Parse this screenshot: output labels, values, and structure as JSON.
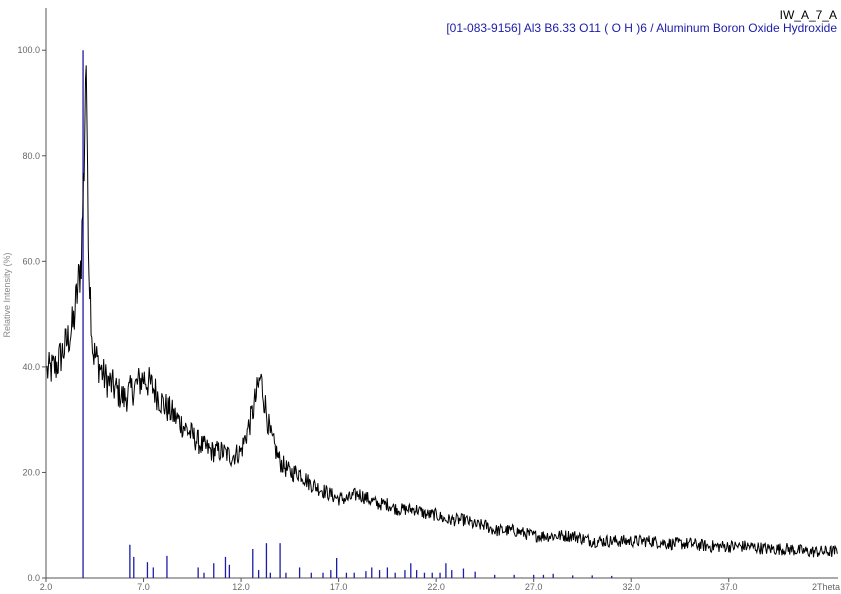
{
  "legend": {
    "sample": "IW_A_7_A",
    "reference": "[01-083-9156] Al3 B6.33 O11 ( O H )6 / Aluminum Boron Oxide Hydroxide"
  },
  "colors": {
    "sample": "#000000",
    "reference": "#1c1ca8",
    "axis": "#555555"
  },
  "chart_data": {
    "type": "line",
    "xlabel": "2Theta",
    "ylabel": "Relative Intensity (%)",
    "xlim": [
      2.0,
      42.6
    ],
    "ylim": [
      0,
      108
    ],
    "x_ticks": [
      2.0,
      7.0,
      12.0,
      17.0,
      22.0,
      27.0,
      32.0,
      37.0
    ],
    "x_tick_labels": [
      "2.0",
      "7.0",
      "12.0",
      "17.0",
      "22.0",
      "27.0",
      "32.0",
      "37.0",
      "2Theta"
    ],
    "y_ticks": [
      0,
      20,
      40,
      60,
      80,
      100
    ],
    "y_tick_labels": [
      "0.0",
      "20.0",
      "40.0",
      "60.0",
      "80.0",
      "100.0"
    ],
    "grid": false,
    "legend_position": "top-right",
    "series": [
      {
        "kind": "measured pattern",
        "x": [
          2.0,
          2.5,
          3.0,
          3.4,
          3.8,
          3.95,
          4.05,
          4.2,
          4.4,
          5.0,
          5.5,
          6.0,
          6.5,
          7.0,
          7.5,
          8.0,
          8.5,
          9.0,
          9.5,
          10.0,
          10.5,
          11.0,
          11.5,
          12.0,
          12.5,
          13.0,
          13.5,
          14.0,
          14.5,
          15.0,
          15.5,
          16.0,
          16.5,
          17.0,
          17.5,
          18.0,
          18.5,
          19.0,
          19.5,
          20.0,
          20.5,
          21.0,
          21.5,
          22.0,
          22.5,
          23.0,
          23.5,
          24.0,
          24.5,
          25.0,
          26.0,
          27.0,
          28.0,
          29.0,
          30.0,
          31.0,
          32.0,
          33.0,
          34.0,
          35.0,
          36.0,
          37.0,
          38.0,
          39.0,
          40.0,
          41.0,
          42.0,
          42.6
        ],
        "y": [
          39,
          40,
          44,
          48,
          60,
          78,
          100,
          60,
          43,
          38,
          36,
          34,
          36,
          38,
          36,
          33,
          31,
          29,
          27,
          25,
          24,
          24,
          23,
          24,
          30,
          38,
          27,
          22,
          20,
          20,
          18,
          17,
          16,
          15,
          15,
          16,
          15,
          14,
          14,
          13,
          13,
          13,
          12,
          12,
          11,
          11,
          11,
          10,
          10,
          9,
          9,
          8,
          8,
          8,
          7,
          7,
          7,
          7,
          6.5,
          6.5,
          6,
          6,
          6,
          5.5,
          5.5,
          5,
          5,
          5
        ]
      },
      {
        "kind": "reference sticks",
        "x": [
          3.9,
          6.3,
          6.5,
          7.2,
          7.5,
          8.2,
          9.8,
          10.1,
          10.6,
          11.2,
          11.4,
          12.6,
          12.9,
          13.3,
          13.5,
          14.0,
          14.3,
          15.0,
          15.6,
          16.2,
          16.6,
          16.9,
          17.4,
          17.8,
          18.4,
          18.7,
          19.1,
          19.5,
          19.9,
          20.4,
          20.7,
          21.0,
          21.4,
          21.8,
          22.2,
          22.5,
          22.8,
          23.4,
          24.0,
          25.0,
          26.0,
          27.0,
          27.5,
          28.0,
          29.0,
          30.0,
          31.0
        ],
        "y": [
          100,
          6.3,
          4.0,
          3.0,
          2.0,
          4.2,
          2.0,
          1.0,
          2.8,
          4.0,
          2.5,
          5.5,
          1.5,
          6.6,
          1.0,
          6.6,
          1.0,
          2.0,
          1.0,
          1.0,
          1.5,
          3.8,
          1.0,
          1.0,
          1.3,
          2.0,
          1.5,
          2.0,
          1.0,
          1.5,
          2.8,
          1.5,
          1.0,
          1.0,
          1.0,
          2.8,
          1.5,
          1.8,
          1.2,
          0.6,
          0.6,
          0.6,
          0.6,
          0.8,
          0.5,
          0.5,
          0.4
        ]
      }
    ]
  }
}
